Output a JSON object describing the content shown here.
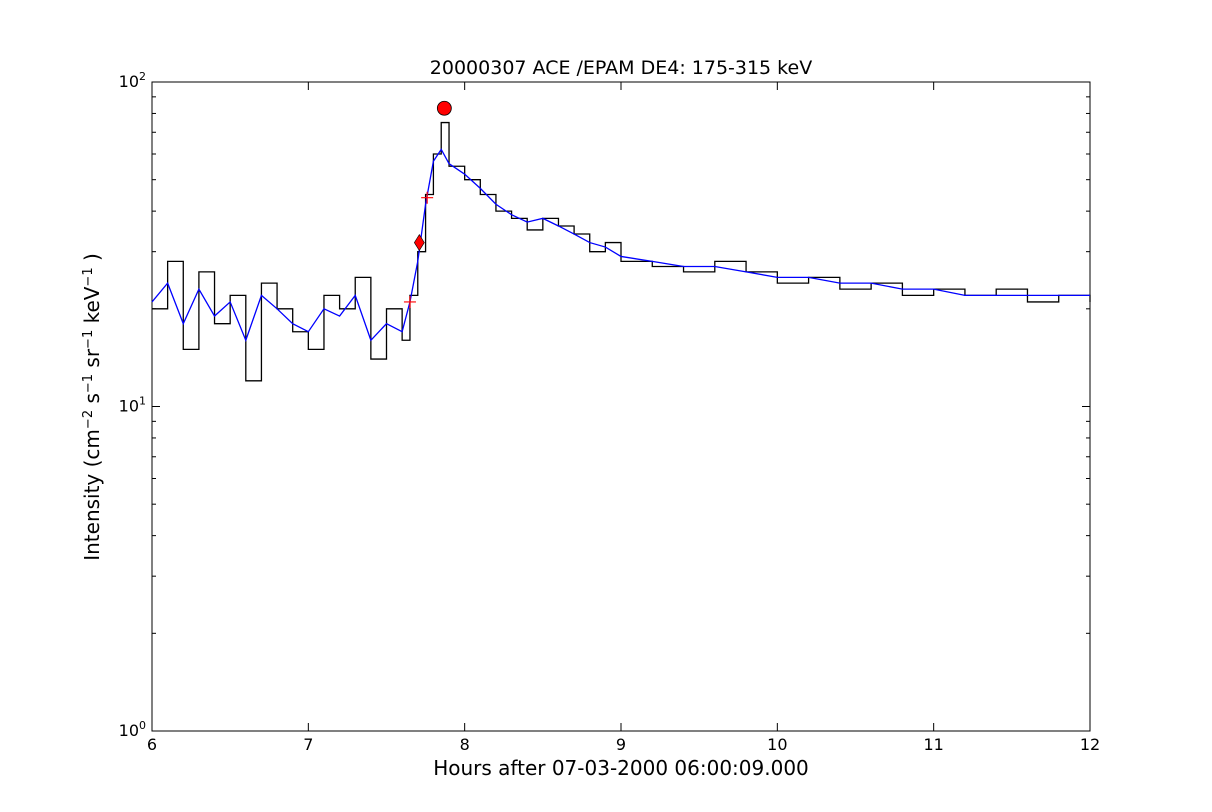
{
  "chart_data": {
    "type": "line",
    "title": "20000307 ACE /EPAM DE4: 175-315 keV",
    "xlabel": "Hours after 07-03-2000 06:00:09.000",
    "ylabel": {
      "prefix": "Intensity (cm",
      "sup1": "−2",
      "mid1": " s",
      "sup2": "−1",
      "mid2": " sr",
      "sup3": "−1",
      "mid3": " keV",
      "sup4": "−1",
      "suffix": " )"
    },
    "x_scale": "linear",
    "y_scale": "log",
    "xlim": [
      6,
      12
    ],
    "ylim": [
      1,
      100
    ],
    "x_ticks": [
      6,
      7,
      8,
      9,
      10,
      11,
      12
    ],
    "x_tick_labels": [
      "6",
      "7",
      "8",
      "9",
      "10",
      "11",
      "12"
    ],
    "y_ticks": [
      1,
      10,
      100
    ],
    "y_tick_labels": [
      {
        "base": "10",
        "exp": "0"
      },
      {
        "base": "10",
        "exp": "1"
      },
      {
        "base": "10",
        "exp": "2"
      }
    ],
    "grid": false,
    "legend": "none",
    "series": [
      {
        "style": "steps",
        "color": "#000000",
        "x": [
          6.0,
          6.1,
          6.2,
          6.3,
          6.4,
          6.5,
          6.6,
          6.7,
          6.8,
          6.9,
          7.0,
          7.1,
          7.2,
          7.3,
          7.4,
          7.5,
          7.6,
          7.65,
          7.7,
          7.75,
          7.8,
          7.85,
          7.9,
          8.0,
          8.1,
          8.2,
          8.3,
          8.4,
          8.5,
          8.6,
          8.7,
          8.8,
          8.9,
          9.0,
          9.2,
          9.4,
          9.6,
          9.8,
          10.0,
          10.2,
          10.4,
          10.6,
          10.8,
          11.0,
          11.2,
          11.4,
          11.6,
          11.8,
          12.0
        ],
        "values": [
          20,
          28,
          15,
          26,
          18,
          22,
          12,
          24,
          20,
          17,
          15,
          22,
          20,
          25,
          14,
          20,
          16,
          22,
          30,
          45,
          60,
          75,
          55,
          50,
          45,
          40,
          38,
          35,
          38,
          36,
          34,
          30,
          32,
          28,
          27,
          26,
          28,
          26,
          24,
          25,
          23,
          24,
          22,
          23,
          22,
          23,
          21,
          22,
          21
        ]
      },
      {
        "style": "line",
        "color": "#0000ff",
        "x": [
          6.0,
          6.1,
          6.2,
          6.3,
          6.4,
          6.5,
          6.6,
          6.7,
          6.8,
          6.9,
          7.0,
          7.1,
          7.2,
          7.3,
          7.4,
          7.5,
          7.6,
          7.65,
          7.7,
          7.75,
          7.8,
          7.85,
          7.9,
          8.0,
          8.1,
          8.2,
          8.3,
          8.4,
          8.5,
          8.6,
          8.7,
          8.8,
          8.9,
          9.0,
          9.2,
          9.4,
          9.6,
          9.8,
          10.0,
          10.2,
          10.4,
          10.6,
          10.8,
          11.0,
          11.2,
          11.4,
          11.6,
          11.8,
          12.0
        ],
        "values": [
          21,
          24,
          18,
          23,
          19,
          21,
          16,
          22,
          20,
          18,
          17,
          20,
          19,
          22,
          16,
          18,
          17,
          21,
          28,
          42,
          57,
          62,
          56,
          52,
          47,
          42,
          39,
          37,
          38,
          36,
          34,
          32,
          31,
          29,
          28,
          27,
          27,
          26,
          25,
          25,
          24,
          24,
          23,
          23,
          22,
          22,
          22,
          22,
          22
        ]
      }
    ],
    "markers": [
      {
        "type": "cross",
        "x": 7.65,
        "y": 21,
        "color": "#ff0000"
      },
      {
        "type": "cross",
        "x": 7.76,
        "y": 44,
        "color": "#ff0000"
      },
      {
        "type": "diamond",
        "x": 7.71,
        "y": 32,
        "color": "#ff0000"
      },
      {
        "type": "circle",
        "x": 7.87,
        "y": 83,
        "color": "#ff0000"
      }
    ]
  }
}
